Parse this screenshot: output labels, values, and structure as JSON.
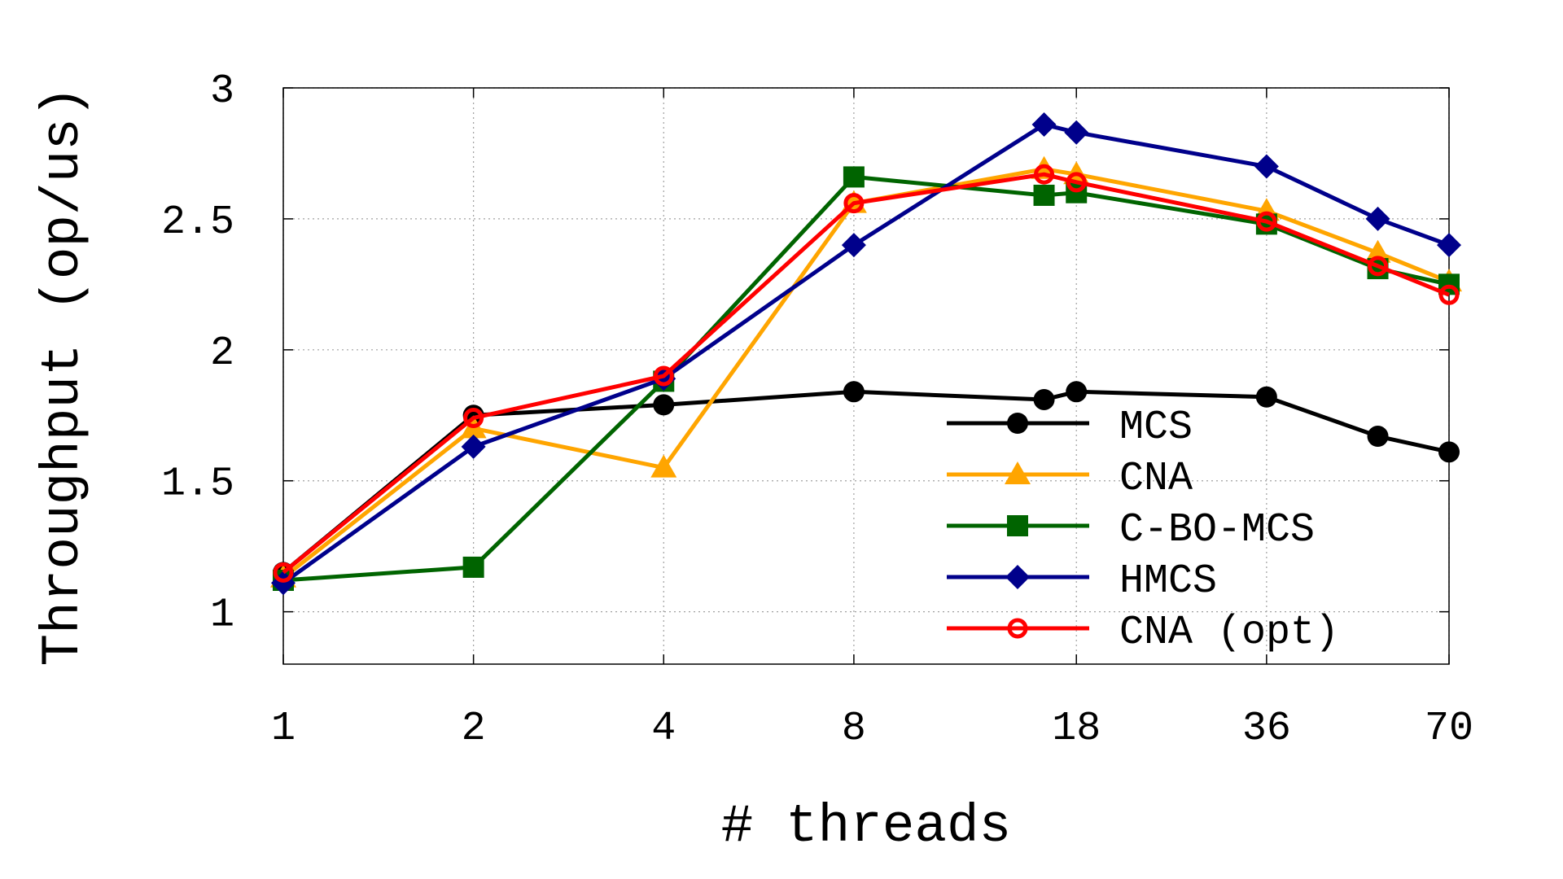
{
  "chart_data": {
    "type": "line",
    "title": "",
    "xlabel": "# threads",
    "ylabel": "Throughput (op/us)",
    "x_tick_labels": [
      "1",
      "2",
      "4",
      "8",
      "18",
      "36",
      "70"
    ],
    "x_tick_values": [
      1,
      2,
      4,
      8,
      18,
      36,
      70
    ],
    "x_scale": "log",
    "x": [
      1,
      2,
      4,
      8,
      16,
      18,
      36,
      54,
      70
    ],
    "ylim": [
      0.8,
      3.0
    ],
    "y_tick_labels": [
      "1",
      "1.5",
      "2",
      "2.5",
      "3"
    ],
    "y_tick_values": [
      1.0,
      1.5,
      2.0,
      2.5,
      3.0
    ],
    "grid": true,
    "legend_position": "bottom-right",
    "series": [
      {
        "name": "MCS",
        "color": "#000000",
        "marker": "circle",
        "values": [
          1.15,
          1.75,
          1.79,
          1.84,
          1.81,
          1.84,
          1.82,
          1.67,
          1.61
        ]
      },
      {
        "name": "CNA",
        "color": "#ffa500",
        "marker": "triangle",
        "values": [
          1.13,
          1.7,
          1.55,
          2.56,
          2.69,
          2.67,
          2.53,
          2.37,
          2.26
        ]
      },
      {
        "name": "C-BO-MCS",
        "color": "#006400",
        "marker": "square",
        "values": [
          1.12,
          1.17,
          1.88,
          2.66,
          2.59,
          2.6,
          2.48,
          2.31,
          2.25
        ]
      },
      {
        "name": "HMCS",
        "color": "#00008b",
        "marker": "diamond",
        "values": [
          1.11,
          1.63,
          1.89,
          2.4,
          2.86,
          2.83,
          2.7,
          2.5,
          2.4
        ]
      },
      {
        "name": "CNA (opt)",
        "color": "#ff0000",
        "marker": "open-circle",
        "values": [
          1.15,
          1.74,
          1.9,
          2.56,
          2.67,
          2.64,
          2.49,
          2.32,
          2.21
        ]
      }
    ]
  }
}
